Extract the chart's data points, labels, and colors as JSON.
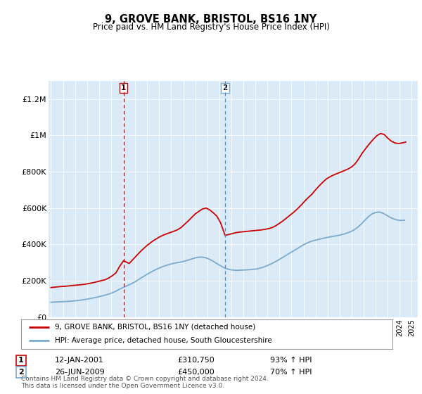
{
  "title": "9, GROVE BANK, BRISTOL, BS16 1NY",
  "subtitle": "Price paid vs. HM Land Registry's House Price Index (HPI)",
  "legend_line1": "9, GROVE BANK, BRISTOL, BS16 1NY (detached house)",
  "legend_line2": "HPI: Average price, detached house, South Gloucestershire",
  "annotation1_date": "12-JAN-2001",
  "annotation1_price": "£310,750",
  "annotation1_hpi": "93% ↑ HPI",
  "annotation2_date": "26-JUN-2009",
  "annotation2_price": "£450,000",
  "annotation2_hpi": "70% ↑ HPI",
  "footer": "Contains HM Land Registry data © Crown copyright and database right 2024.\nThis data is licensed under the Open Government Licence v3.0.",
  "red_color": "#cc0000",
  "blue_color": "#7aabcf",
  "vline1_x": 2001.04,
  "vline2_x": 2009.48,
  "ylim": [
    0,
    1300000
  ],
  "xlim": [
    1994.8,
    2025.5
  ],
  "background_color": "#daeaf7",
  "red_data_x": [
    1995.0,
    1995.3,
    1995.6,
    1995.9,
    1996.2,
    1996.5,
    1996.8,
    1997.1,
    1997.4,
    1997.7,
    1998.0,
    1998.3,
    1998.6,
    1998.9,
    1999.2,
    1999.5,
    1999.8,
    2000.1,
    2000.4,
    2000.7,
    2001.04,
    2001.5,
    2002.0,
    2002.5,
    2003.0,
    2003.5,
    2004.0,
    2004.3,
    2004.6,
    2004.9,
    2005.2,
    2005.5,
    2005.8,
    2006.1,
    2006.4,
    2006.7,
    2007.0,
    2007.3,
    2007.6,
    2007.9,
    2008.2,
    2008.5,
    2008.8,
    2009.1,
    2009.48,
    2009.8,
    2010.1,
    2010.4,
    2010.7,
    2011.0,
    2011.3,
    2011.6,
    2011.9,
    2012.2,
    2012.5,
    2012.8,
    2013.1,
    2013.4,
    2013.7,
    2014.0,
    2014.3,
    2014.6,
    2014.9,
    2015.2,
    2015.5,
    2015.8,
    2016.1,
    2016.4,
    2016.7,
    2017.0,
    2017.3,
    2017.6,
    2017.9,
    2018.2,
    2018.5,
    2018.8,
    2019.1,
    2019.4,
    2019.7,
    2020.0,
    2020.3,
    2020.6,
    2020.9,
    2021.2,
    2021.5,
    2021.8,
    2022.1,
    2022.4,
    2022.7,
    2023.0,
    2023.3,
    2023.6,
    2023.9,
    2024.2,
    2024.5
  ],
  "red_data_y": [
    163000,
    165000,
    167000,
    169000,
    170000,
    172000,
    174000,
    176000,
    178000,
    180000,
    183000,
    187000,
    191000,
    196000,
    201000,
    206000,
    215000,
    228000,
    243000,
    278000,
    310750,
    295000,
    330000,
    365000,
    395000,
    420000,
    440000,
    450000,
    458000,
    465000,
    472000,
    480000,
    492000,
    510000,
    528000,
    548000,
    568000,
    582000,
    595000,
    600000,
    590000,
    574000,
    555000,
    520000,
    450000,
    455000,
    460000,
    465000,
    468000,
    470000,
    472000,
    474000,
    476000,
    478000,
    480000,
    483000,
    487000,
    493000,
    503000,
    516000,
    530000,
    546000,
    562000,
    578000,
    596000,
    616000,
    638000,
    658000,
    676000,
    700000,
    722000,
    742000,
    760000,
    772000,
    782000,
    790000,
    798000,
    806000,
    815000,
    826000,
    844000,
    872000,
    904000,
    930000,
    955000,
    978000,
    998000,
    1010000,
    1005000,
    985000,
    968000,
    958000,
    955000,
    958000,
    963000
  ],
  "blue_data_x": [
    1995.0,
    1995.3,
    1995.6,
    1995.9,
    1996.2,
    1996.5,
    1996.8,
    1997.1,
    1997.4,
    1997.7,
    1998.0,
    1998.3,
    1998.6,
    1998.9,
    1999.2,
    1999.5,
    1999.8,
    2000.1,
    2000.4,
    2000.7,
    2001.0,
    2001.3,
    2001.6,
    2001.9,
    2002.2,
    2002.5,
    2002.8,
    2003.1,
    2003.4,
    2003.7,
    2004.0,
    2004.3,
    2004.6,
    2004.9,
    2005.2,
    2005.5,
    2005.8,
    2006.1,
    2006.4,
    2006.7,
    2007.0,
    2007.3,
    2007.6,
    2007.9,
    2008.2,
    2008.5,
    2008.8,
    2009.1,
    2009.4,
    2009.7,
    2010.0,
    2010.3,
    2010.6,
    2010.9,
    2011.2,
    2011.5,
    2011.8,
    2012.1,
    2012.4,
    2012.7,
    2013.0,
    2013.3,
    2013.6,
    2013.9,
    2014.2,
    2014.5,
    2014.8,
    2015.1,
    2015.4,
    2015.7,
    2016.0,
    2016.3,
    2016.6,
    2016.9,
    2017.2,
    2017.5,
    2017.8,
    2018.1,
    2018.4,
    2018.7,
    2019.0,
    2019.3,
    2019.6,
    2019.9,
    2020.2,
    2020.5,
    2020.8,
    2021.1,
    2021.4,
    2021.7,
    2022.0,
    2022.3,
    2022.6,
    2022.9,
    2023.2,
    2023.5,
    2023.8,
    2024.1,
    2024.4
  ],
  "blue_data_y": [
    82000,
    83000,
    84000,
    85000,
    86000,
    87000,
    89000,
    91000,
    93000,
    96000,
    99000,
    103000,
    107000,
    111000,
    116000,
    121000,
    127000,
    134000,
    143000,
    154000,
    163000,
    172000,
    181000,
    191000,
    203000,
    216000,
    228000,
    240000,
    251000,
    261000,
    270000,
    278000,
    285000,
    291000,
    296000,
    300000,
    303000,
    308000,
    314000,
    320000,
    326000,
    330000,
    330000,
    326000,
    318000,
    307000,
    295000,
    283000,
    272000,
    264000,
    260000,
    258000,
    258000,
    259000,
    260000,
    261000,
    263000,
    265000,
    270000,
    276000,
    284000,
    293000,
    303000,
    314000,
    326000,
    338000,
    350000,
    362000,
    374000,
    386000,
    398000,
    408000,
    416000,
    422000,
    427000,
    432000,
    436000,
    440000,
    444000,
    447000,
    451000,
    456000,
    462000,
    470000,
    480000,
    494000,
    512000,
    533000,
    553000,
    568000,
    576000,
    578000,
    572000,
    561000,
    549000,
    540000,
    534000,
    532000,
    533000
  ]
}
